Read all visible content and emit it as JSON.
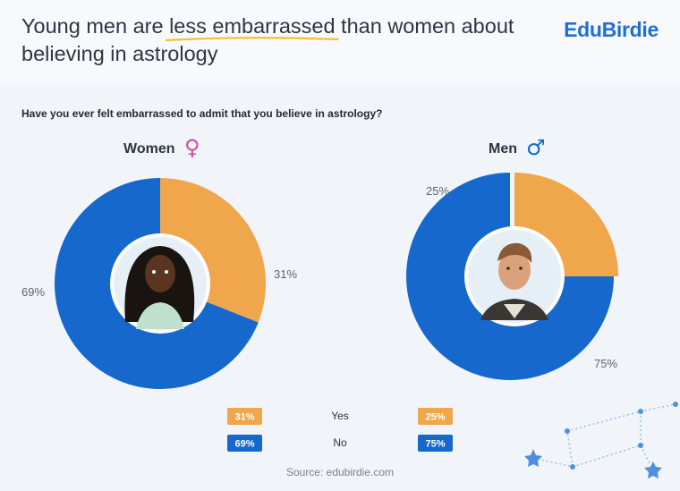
{
  "header": {
    "title_before": "Young men are ",
    "title_highlight": "less embarrassed",
    "title_after": " than women about believing in astrology",
    "logo": "EduBirdie"
  },
  "question": "Have you ever felt embarrassed to admit that you believe in astrology?",
  "source": "Source: edubirdie.com",
  "colors": {
    "yes": "#f0a64b",
    "no": "#1668cc",
    "underline": "#f2c12e"
  },
  "chart_data": [
    {
      "type": "pie",
      "title": "Women",
      "gender_symbol": "♀",
      "symbol_color": "#c74fa3",
      "categories": [
        "Yes",
        "No"
      ],
      "values": [
        31,
        69
      ],
      "labels": [
        "31%",
        "69%"
      ]
    },
    {
      "type": "pie",
      "title": "Men",
      "gender_symbol": "♂",
      "symbol_color": "#1668cc",
      "categories": [
        "Yes",
        "No"
      ],
      "values": [
        25,
        75
      ],
      "labels": [
        "25%",
        "75%"
      ]
    }
  ]
}
